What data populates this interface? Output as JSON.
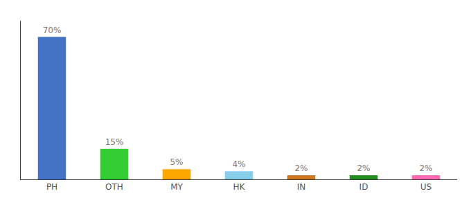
{
  "chart_data": {
    "type": "bar",
    "categories": [
      "PH",
      "OTH",
      "MY",
      "HK",
      "IN",
      "ID",
      "US"
    ],
    "values": [
      70,
      15,
      5,
      4,
      2,
      2,
      2
    ],
    "value_labels": [
      "70%",
      "15%",
      "5%",
      "4%",
      "2%",
      "2%",
      "2%"
    ],
    "colors": [
      "#4472C4",
      "#33CC33",
      "#FFA500",
      "#87CEEB",
      "#CC7722",
      "#228B22",
      "#FF69B4"
    ],
    "ylim": [
      0,
      78
    ],
    "grid": false,
    "data_labels": true,
    "tick_labels": "x"
  }
}
